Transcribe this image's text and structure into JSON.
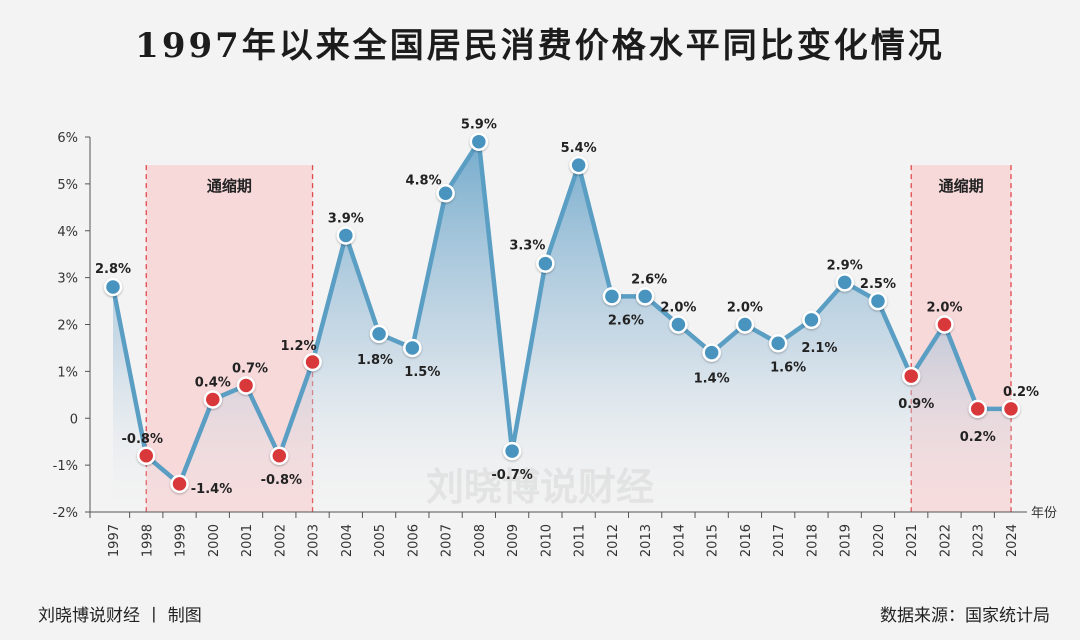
{
  "title": "1997年以来全国居民消费价格水平同比变化情况",
  "watermark": "刘晓博说财经",
  "footer_left": "刘晓博说财经 丨 制图",
  "footer_right": "数据来源：国家统计局",
  "colors": {
    "line": "#5b9ec4",
    "point_normal": "#4a93bf",
    "point_deflation": "#d9383b",
    "deflation_band": "#f8d0d2",
    "deflation_border": "#e04a4c",
    "area_top": "#6fa9cc"
  },
  "chart_data": {
    "type": "line",
    "title": "1997年以来全国居民消费价格水平同比变化情况",
    "xlabel": "年份",
    "ylabel": "",
    "x": [
      "1997",
      "1998",
      "1999",
      "2000",
      "2001",
      "2002",
      "2003",
      "2004",
      "2005",
      "2006",
      "2007",
      "2008",
      "2009",
      "2010",
      "2011",
      "2012",
      "2013",
      "2014",
      "2015",
      "2016",
      "2017",
      "2018",
      "2019",
      "2020",
      "2021",
      "2022",
      "2023",
      "2024"
    ],
    "values": [
      2.8,
      -0.8,
      -1.4,
      0.4,
      0.7,
      -0.8,
      1.2,
      3.9,
      1.8,
      1.5,
      4.8,
      5.9,
      -0.7,
      3.3,
      5.4,
      2.6,
      2.6,
      2.0,
      1.4,
      2.0,
      1.6,
      2.1,
      2.9,
      2.5,
      0.9,
      2.0,
      0.2,
      0.2
    ],
    "labels": [
      "2.8%",
      "-0.8%",
      "-1.4%",
      "0.4%",
      "0.7%",
      "-0.8%",
      "1.2%",
      "3.9%",
      "1.8%",
      "1.5%",
      "4.8%",
      "5.9%",
      "-0.7%",
      "3.3%",
      "5.4%",
      "2.6%",
      "2.6%",
      "2.0%",
      "1.4%",
      "2.0%",
      "1.6%",
      "2.1%",
      "2.9%",
      "2.5%",
      "0.9%",
      "2.0%",
      "0.2%",
      "0.2%"
    ],
    "ylim": [
      -2,
      6
    ],
    "yticks": [
      -2,
      -1,
      0,
      1,
      2,
      3,
      4,
      5,
      6
    ],
    "ytick_labels": [
      "-2%",
      "-1%",
      "0",
      "1%",
      "2%",
      "3%",
      "4%",
      "5%",
      "6%"
    ],
    "deflation_years": [
      "1998",
      "1999",
      "2000",
      "2001",
      "2002",
      "2003",
      "2021",
      "2022",
      "2023",
      "2024"
    ],
    "shaded_periods": [
      {
        "label": "通缩期",
        "start": "1998",
        "end": "2003"
      },
      {
        "label": "通缩期",
        "start": "2021",
        "end": "2024"
      }
    ],
    "grid": false
  }
}
